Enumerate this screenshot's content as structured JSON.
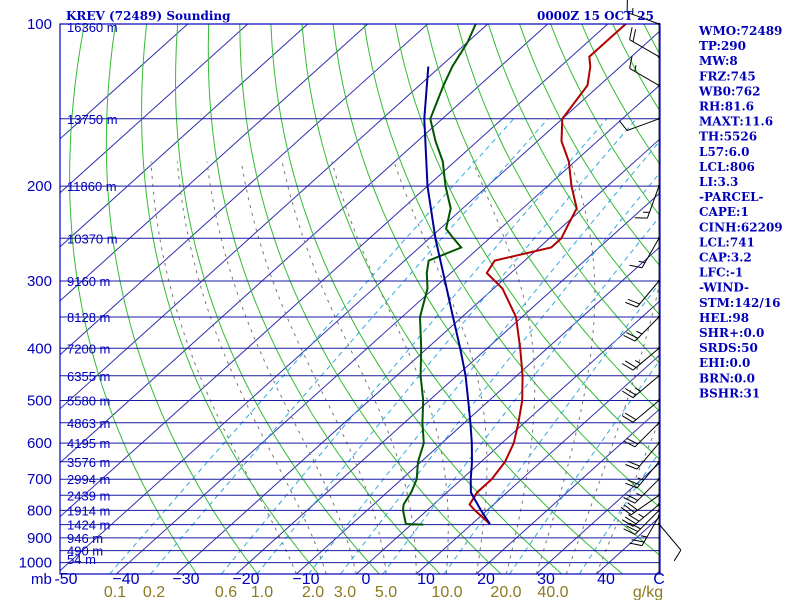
{
  "chart_data": {
    "type": "line",
    "title": "KREV (72489) Sounding",
    "date": "0000Z 15 OCT 25",
    "pressure_unit": "mb",
    "mixing_ratio_unit": "g/kg",
    "pressure_ticks": [
      100,
      200,
      300,
      400,
      500,
      600,
      700,
      800,
      900,
      1000
    ],
    "pressure_levels": [
      100,
      150,
      200,
      250,
      300,
      350,
      400,
      450,
      500,
      550,
      600,
      650,
      700,
      750,
      800,
      850,
      900,
      950,
      1000
    ],
    "height_ticks": [
      {
        "p": 100,
        "label": "16360 m"
      },
      {
        "p": 150,
        "label": "13750 m"
      },
      {
        "p": 200,
        "label": "11860 m"
      },
      {
        "p": 250,
        "label": "10370 m"
      },
      {
        "p": 300,
        "label": "9160 m"
      },
      {
        "p": 350,
        "label": "8128 m"
      },
      {
        "p": 400,
        "label": "7200 m"
      },
      {
        "p": 450,
        "label": "6355 m"
      },
      {
        "p": 500,
        "label": "5580 m"
      },
      {
        "p": 550,
        "label": "4863 m"
      },
      {
        "p": 600,
        "label": "4195 m"
      },
      {
        "p": 650,
        "label": "3576 m"
      },
      {
        "p": 700,
        "label": "2994 m"
      },
      {
        "p": 750,
        "label": "2439 m"
      },
      {
        "p": 800,
        "label": "1914 m"
      },
      {
        "p": 850,
        "label": "1424 m"
      },
      {
        "p": 900,
        "label": "946 m"
      },
      {
        "p": 950,
        "label": "490 m"
      },
      {
        "p": 1000,
        "label": "54 m"
      }
    ],
    "temp_ticks": [
      -50,
      -40,
      -30,
      -20,
      -10,
      0,
      10,
      20,
      30,
      40
    ],
    "temp_tick_labels": [
      "-50",
      "−40",
      "−30",
      "−20",
      "−10",
      "0",
      "10",
      "20",
      "30",
      "40"
    ],
    "right_tick_label": "C",
    "mixing_ratio_ticks": [
      {
        "w": 0.1,
        "label": "0.1"
      },
      {
        "w": 0.2,
        "label": "0.2"
      },
      {
        "w": 0.6,
        "label": "0.6"
      },
      {
        "w": 1.0,
        "label": "1.0"
      },
      {
        "w": 2.0,
        "label": "2.0"
      },
      {
        "w": 3.0,
        "label": "3.0"
      },
      {
        "w": 5.0,
        "label": "5.0"
      },
      {
        "w": 10.0,
        "label": "10.0"
      },
      {
        "w": 20.0,
        "label": "20.0"
      },
      {
        "w": 40.0,
        "label": "40.0"
      }
    ],
    "series": [
      {
        "name": "Temperature",
        "color": "#b00000",
        "points": [
          {
            "p": 848,
            "t": 13.0
          },
          {
            "p": 800,
            "t": 8.0
          },
          {
            "p": 780,
            "t": 6.0
          },
          {
            "p": 740,
            "t": 5.0
          },
          {
            "p": 700,
            "t": 5.0
          },
          {
            "p": 650,
            "t": 4.0
          },
          {
            "p": 600,
            "t": 2.0
          },
          {
            "p": 550,
            "t": -1.0
          },
          {
            "p": 500,
            "t": -4.5
          },
          {
            "p": 450,
            "t": -9.0
          },
          {
            "p": 400,
            "t": -14.5
          },
          {
            "p": 350,
            "t": -21.0
          },
          {
            "p": 310,
            "t": -28.5
          },
          {
            "p": 290,
            "t": -34.0
          },
          {
            "p": 275,
            "t": -35.0
          },
          {
            "p": 260,
            "t": -28.0
          },
          {
            "p": 250,
            "t": -28.0
          },
          {
            "p": 240,
            "t": -29.0
          },
          {
            "p": 220,
            "t": -31.0
          },
          {
            "p": 200,
            "t": -36.0
          },
          {
            "p": 180,
            "t": -41.0
          },
          {
            "p": 165,
            "t": -46.0
          },
          {
            "p": 150,
            "t": -50.0
          },
          {
            "p": 130,
            "t": -52.0
          },
          {
            "p": 120,
            "t": -55.0
          },
          {
            "p": 115,
            "t": -57.0
          },
          {
            "p": 108,
            "t": -57.0
          },
          {
            "p": 100,
            "t": -57.0
          },
          {
            "p": 96,
            "t": -60.0
          }
        ]
      },
      {
        "name": "Dewpoint",
        "color": "#005500",
        "points": [
          {
            "p": 850,
            "t": 2.0
          },
          {
            "p": 848,
            "t": -1.0
          },
          {
            "p": 800,
            "t": -4.0
          },
          {
            "p": 780,
            "t": -5.0
          },
          {
            "p": 740,
            "t": -6.0
          },
          {
            "p": 700,
            "t": -7.5
          },
          {
            "p": 650,
            "t": -10.5
          },
          {
            "p": 600,
            "t": -13.0
          },
          {
            "p": 550,
            "t": -17.0
          },
          {
            "p": 500,
            "t": -21.0
          },
          {
            "p": 450,
            "t": -26.0
          },
          {
            "p": 400,
            "t": -31.0
          },
          {
            "p": 350,
            "t": -37.0
          },
          {
            "p": 310,
            "t": -41.0
          },
          {
            "p": 290,
            "t": -44.0
          },
          {
            "p": 275,
            "t": -46.0
          },
          {
            "p": 260,
            "t": -43.0
          },
          {
            "p": 250,
            "t": -46.0
          },
          {
            "p": 240,
            "t": -49.0
          },
          {
            "p": 220,
            "t": -52.0
          },
          {
            "p": 200,
            "t": -57.0
          },
          {
            "p": 180,
            "t": -62.0
          },
          {
            "p": 165,
            "t": -67.0
          },
          {
            "p": 150,
            "t": -72.0
          },
          {
            "p": 130,
            "t": -76.0
          },
          {
            "p": 120,
            "t": -78.0
          },
          {
            "p": 108,
            "t": -80.0
          },
          {
            "p": 100,
            "t": -82.0
          },
          {
            "p": 96,
            "t": -83.0
          }
        ]
      },
      {
        "name": "Parcel",
        "color": "#000099",
        "points": [
          {
            "p": 848,
            "t": 13.0
          },
          {
            "p": 800,
            "t": 9.0
          },
          {
            "p": 741,
            "t": 4.0
          },
          {
            "p": 700,
            "t": 1.5
          },
          {
            "p": 650,
            "t": -1.5
          },
          {
            "p": 600,
            "t": -5.0
          },
          {
            "p": 550,
            "t": -9.0
          },
          {
            "p": 500,
            "t": -13.5
          },
          {
            "p": 450,
            "t": -18.5
          },
          {
            "p": 400,
            "t": -24.5
          },
          {
            "p": 350,
            "t": -31.5
          },
          {
            "p": 300,
            "t": -39.5
          },
          {
            "p": 250,
            "t": -49.0
          },
          {
            "p": 200,
            "t": -60.0
          },
          {
            "p": 150,
            "t": -73.0
          },
          {
            "p": 120,
            "t": -82.0
          }
        ]
      }
    ],
    "wind_barbs": [
      {
        "p": 848,
        "dir": 140,
        "spd": 10
      },
      {
        "p": 820,
        "dir": 210,
        "spd": 25
      },
      {
        "p": 800,
        "dir": 225,
        "spd": 30
      },
      {
        "p": 780,
        "dir": 230,
        "spd": 35
      },
      {
        "p": 750,
        "dir": 235,
        "spd": 30
      },
      {
        "p": 700,
        "dir": 225,
        "spd": 25
      },
      {
        "p": 650,
        "dir": 220,
        "spd": 25
      },
      {
        "p": 600,
        "dir": 220,
        "spd": 20
      },
      {
        "p": 550,
        "dir": 225,
        "spd": 20
      },
      {
        "p": 500,
        "dir": 230,
        "spd": 20
      },
      {
        "p": 450,
        "dir": 230,
        "spd": 25
      },
      {
        "p": 400,
        "dir": 230,
        "spd": 25
      },
      {
        "p": 350,
        "dir": 225,
        "spd": 25
      },
      {
        "p": 300,
        "dir": 220,
        "spd": 20
      },
      {
        "p": 250,
        "dir": 210,
        "spd": 15
      },
      {
        "p": 200,
        "dir": 200,
        "spd": 15
      },
      {
        "p": 150,
        "dir": 250,
        "spd": 10
      },
      {
        "p": 130,
        "dir": 300,
        "spd": 15
      },
      {
        "p": 115,
        "dir": 300,
        "spd": 20
      },
      {
        "p": 100,
        "dir": 290,
        "spd": 15
      }
    ]
  },
  "stats": [
    "WMO:72489",
    "TP:290",
    "MW:8",
    "FRZ:745",
    "WB0:762",
    "RH:81.6",
    "MAXT:11.6",
    "TH:5526",
    "L57:6.0",
    "LCL:806",
    "LI:3.3",
    "-PARCEL-",
    "CAPE:1",
    "CINH:62209",
    "LCL:741",
    "CAP:3.2",
    "LFC:-1",
    "-WIND-",
    "STM:142/16",
    "HEL:98",
    "SHR+:0.0",
    "SRDS:50",
    "EHI:0.0",
    "BRN:0.0",
    "BSHR:31"
  ],
  "colors": {
    "frame": "#0000bb",
    "isobar": "#1a1aa0",
    "isotherm": "#3030b0",
    "dry_adiabat": "#33bb33",
    "moist_adiabat": "#777777",
    "mixing_ratio": "#33aadd",
    "mixing_label": "#8a7a20",
    "barb": "#000000"
  }
}
